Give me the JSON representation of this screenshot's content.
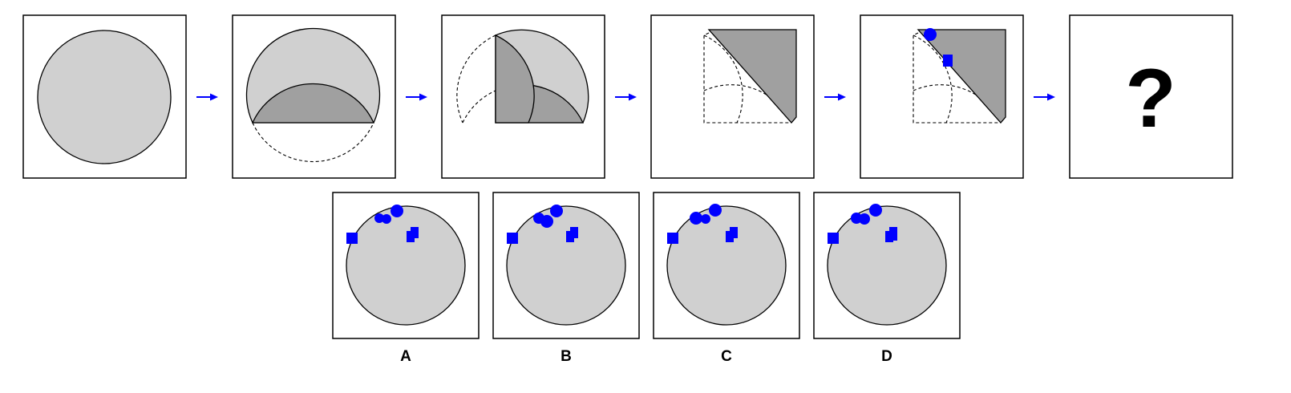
{
  "question_mark": "?",
  "options": [
    {
      "label": "A"
    },
    {
      "label": "B"
    },
    {
      "label": "C"
    },
    {
      "label": "D"
    }
  ],
  "colors": {
    "paper": "#d0d0d0",
    "folded_layer": "#a0a0a0",
    "holes": "#0000ff",
    "arrows": "#0000ff"
  }
}
